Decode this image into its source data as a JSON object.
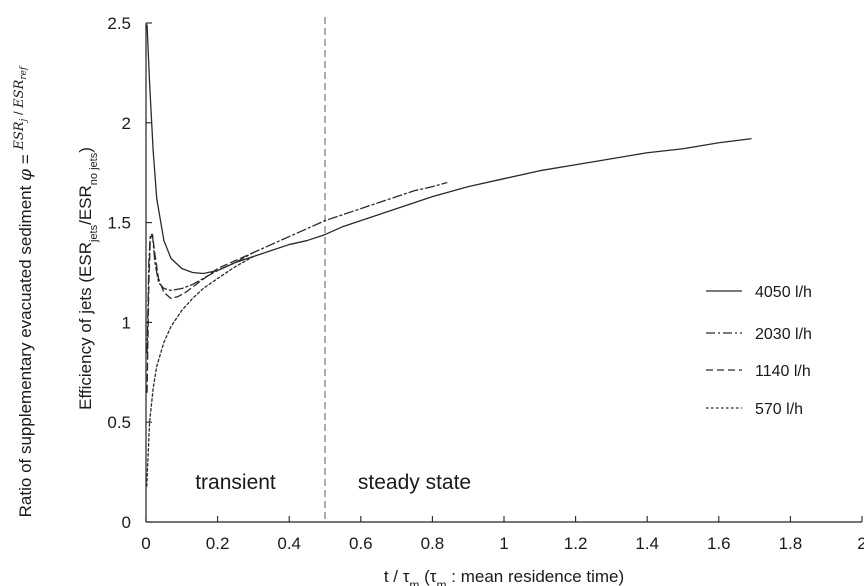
{
  "chart_data": {
    "type": "line",
    "xlabel": "t / τm (τm : mean residence time)",
    "ylabel_outer": "Ratio of supplementary evacuated sediment φ = ESRj / ESRref",
    "ylabel_inner": "Efficiency of jets (ESRjets/ESRno jets)",
    "xlim": [
      0,
      2
    ],
    "ylim": [
      0,
      2.5
    ],
    "xticks": [
      0,
      0.2,
      0.4,
      0.6,
      0.8,
      1,
      1.2,
      1.4,
      1.6,
      1.8,
      2
    ],
    "xtick_labels": [
      "0",
      "0.2",
      "0.4",
      "0.6",
      "0.8",
      "1",
      "1.2",
      "1.4",
      "1.6",
      "1.8",
      "2"
    ],
    "yticks": [
      0,
      0.5,
      1,
      1.5,
      2,
      2.5
    ],
    "ytick_labels": [
      "0",
      "0.5",
      "1",
      "1.5",
      "2",
      "2.5"
    ],
    "grid": false,
    "legend_position": "right",
    "vertical_marker": {
      "x": 0.5,
      "style": "dashed",
      "color": "#8a8a8a"
    },
    "annotations": [
      {
        "text": "transient",
        "x": 0.25,
        "y": 0.2
      },
      {
        "text": "steady state",
        "x": 0.75,
        "y": 0.2
      }
    ],
    "series": [
      {
        "name": "4050 l/h",
        "style": "solid",
        "x": [
          0.003,
          0.01,
          0.02,
          0.03,
          0.05,
          0.07,
          0.1,
          0.13,
          0.16,
          0.2,
          0.25,
          0.3,
          0.35,
          0.4,
          0.45,
          0.5,
          0.55,
          0.6,
          0.7,
          0.8,
          0.9,
          1.0,
          1.1,
          1.2,
          1.3,
          1.4,
          1.5,
          1.6,
          1.69
        ],
        "values": [
          2.49,
          2.2,
          1.86,
          1.62,
          1.41,
          1.32,
          1.27,
          1.25,
          1.245,
          1.26,
          1.3,
          1.33,
          1.36,
          1.39,
          1.41,
          1.44,
          1.48,
          1.51,
          1.57,
          1.63,
          1.68,
          1.72,
          1.76,
          1.79,
          1.82,
          1.85,
          1.87,
          1.9,
          1.92
        ]
      },
      {
        "name": "2030 l/h",
        "style": "dash-dot",
        "x": [
          0.003,
          0.008,
          0.012,
          0.018,
          0.025,
          0.035,
          0.05,
          0.07,
          0.1,
          0.13,
          0.17,
          0.2,
          0.25,
          0.3,
          0.35,
          0.4,
          0.45,
          0.5,
          0.55,
          0.6,
          0.65,
          0.7,
          0.75,
          0.8,
          0.84
        ],
        "values": [
          0.85,
          1.3,
          1.44,
          1.44,
          1.3,
          1.2,
          1.17,
          1.16,
          1.17,
          1.19,
          1.23,
          1.26,
          1.3,
          1.35,
          1.39,
          1.43,
          1.47,
          1.51,
          1.54,
          1.57,
          1.6,
          1.63,
          1.66,
          1.68,
          1.7
        ]
      },
      {
        "name": "1140 l/h",
        "style": "dashed",
        "x": [
          0.003,
          0.008,
          0.012,
          0.018,
          0.025,
          0.035,
          0.05,
          0.07,
          0.09,
          0.11,
          0.14,
          0.17,
          0.2,
          0.25,
          0.3
        ],
        "values": [
          0.65,
          1.2,
          1.42,
          1.44,
          1.34,
          1.22,
          1.15,
          1.12,
          1.13,
          1.15,
          1.19,
          1.23,
          1.27,
          1.31,
          1.35
        ]
      },
      {
        "name": "570 l/h",
        "style": "dotted",
        "x": [
          0.002,
          0.01,
          0.02,
          0.03,
          0.05,
          0.07,
          0.1,
          0.13,
          0.16,
          0.2,
          0.25,
          0.3
        ],
        "values": [
          0.18,
          0.5,
          0.67,
          0.78,
          0.9,
          0.98,
          1.06,
          1.12,
          1.17,
          1.22,
          1.28,
          1.33
        ]
      }
    ]
  },
  "legend": {
    "labels": [
      "4050 l/h",
      "2030 l/h",
      "1140 l/h",
      "570 l/h"
    ]
  },
  "colors": {
    "line": "#2a2a2a",
    "axis": "#222222",
    "marker": "#8a8a8a"
  }
}
